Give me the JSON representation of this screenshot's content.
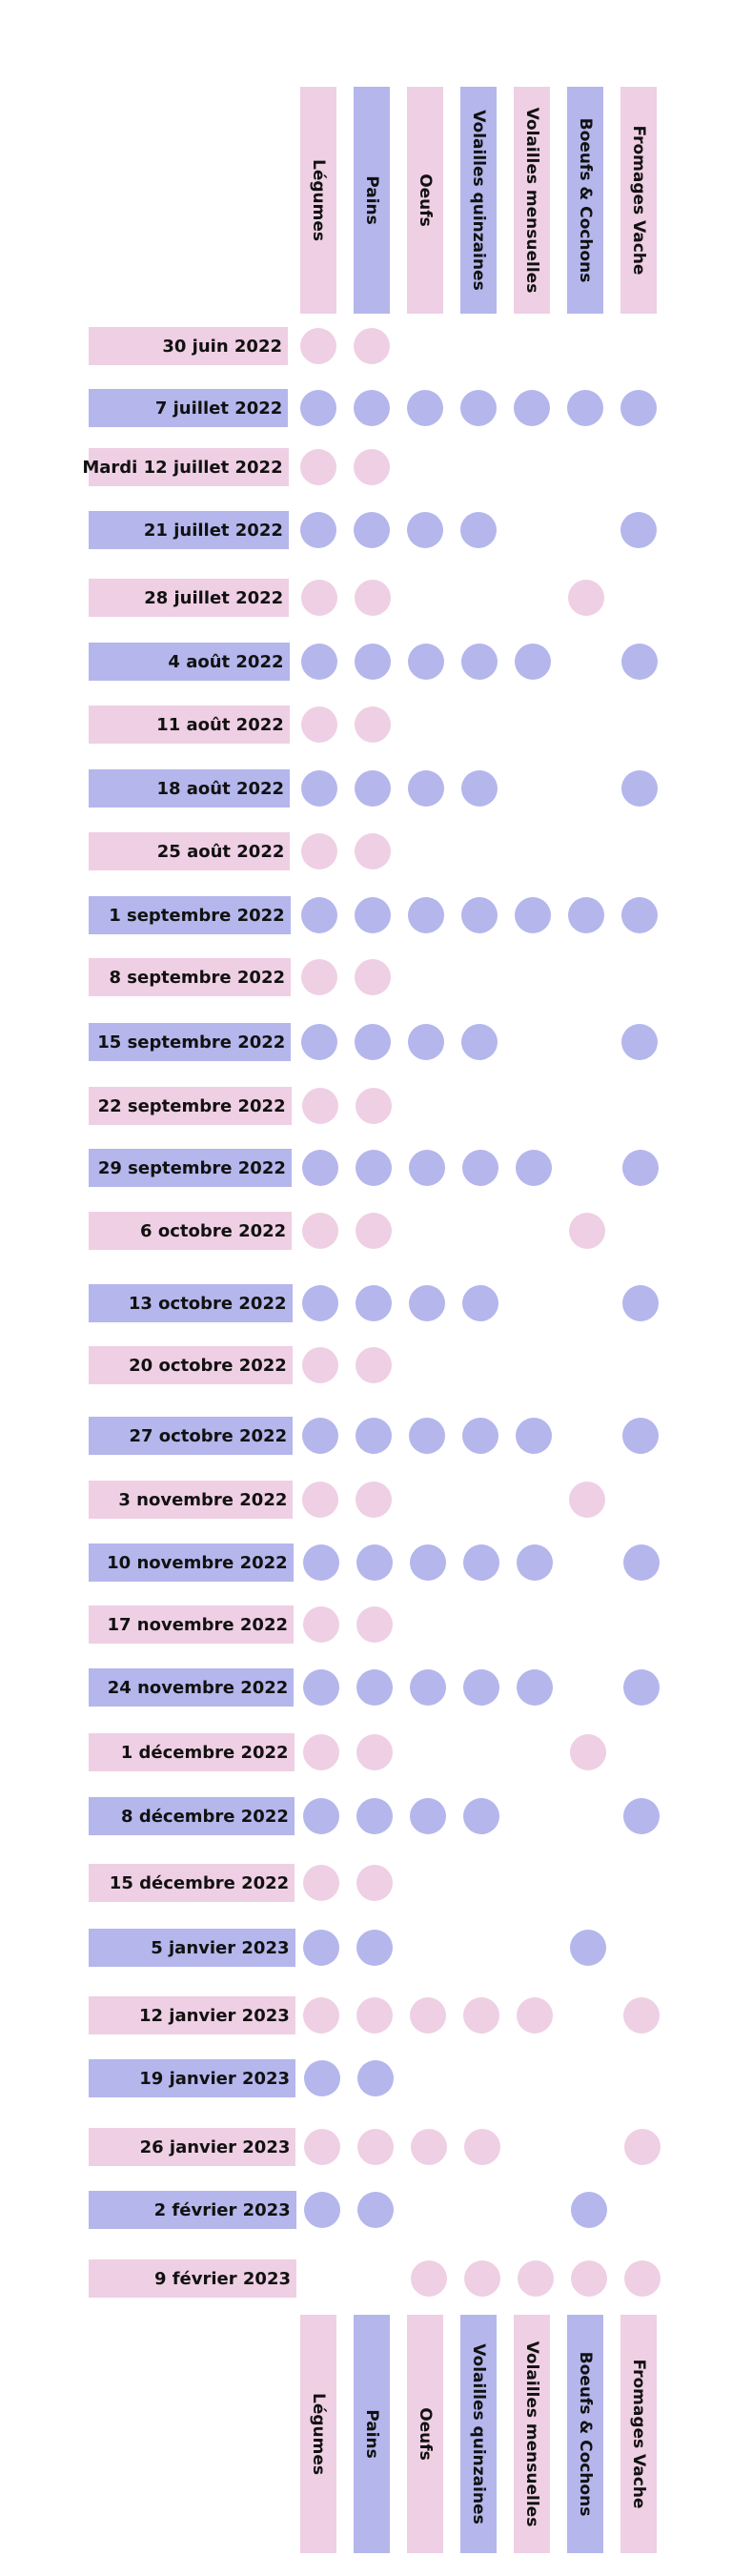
{
  "colors": {
    "pink": "#efcfe4",
    "blue": "#b4b6ec"
  },
  "columns": [
    {
      "key": "legumes",
      "label": "Légumes",
      "color": "pink"
    },
    {
      "key": "pains",
      "label": "Pains",
      "color": "blue"
    },
    {
      "key": "oeufs",
      "label": "Oeufs",
      "color": "pink"
    },
    {
      "key": "volailles_q",
      "label": "Volailles quinzaines",
      "color": "blue"
    },
    {
      "key": "volailles_m",
      "label": "Volailles mensuelles",
      "color": "pink"
    },
    {
      "key": "boeufs",
      "label": "Boeufs & Cochons",
      "color": "blue"
    },
    {
      "key": "fromages",
      "label": "Fromages Vache",
      "color": "pink"
    }
  ],
  "rows": [
    {
      "date": "30 juin 2022",
      "color": "pink",
      "deliveries": [
        1,
        1,
        0,
        0,
        0,
        0,
        0
      ]
    },
    {
      "date": "7 juillet 2022",
      "color": "blue",
      "deliveries": [
        1,
        1,
        1,
        1,
        1,
        1,
        1
      ]
    },
    {
      "date": "Mardi 12 juillet 2022",
      "color": "pink",
      "deliveries": [
        1,
        1,
        0,
        0,
        0,
        0,
        0
      ]
    },
    {
      "date": "21 juillet 2022",
      "color": "blue",
      "deliveries": [
        1,
        1,
        1,
        1,
        0,
        0,
        1
      ]
    },
    {
      "date": "28 juillet 2022",
      "color": "pink",
      "deliveries": [
        1,
        1,
        0,
        0,
        0,
        1,
        0
      ]
    },
    {
      "date": "4 août 2022",
      "color": "blue",
      "deliveries": [
        1,
        1,
        1,
        1,
        1,
        0,
        1
      ]
    },
    {
      "date": "11 août 2022",
      "color": "pink",
      "deliveries": [
        1,
        1,
        0,
        0,
        0,
        0,
        0
      ]
    },
    {
      "date": "18 août 2022",
      "color": "blue",
      "deliveries": [
        1,
        1,
        1,
        1,
        0,
        0,
        1
      ]
    },
    {
      "date": "25 août 2022",
      "color": "pink",
      "deliveries": [
        1,
        1,
        0,
        0,
        0,
        0,
        0
      ]
    },
    {
      "date": "1 septembre 2022",
      "color": "blue",
      "deliveries": [
        1,
        1,
        1,
        1,
        1,
        1,
        1
      ]
    },
    {
      "date": "8 septembre 2022",
      "color": "pink",
      "deliveries": [
        1,
        1,
        0,
        0,
        0,
        0,
        0
      ]
    },
    {
      "date": "15 septembre 2022",
      "color": "blue",
      "deliveries": [
        1,
        1,
        1,
        1,
        0,
        0,
        1
      ]
    },
    {
      "date": "22 septembre 2022",
      "color": "pink",
      "deliveries": [
        1,
        1,
        0,
        0,
        0,
        0,
        0
      ]
    },
    {
      "date": "29 septembre 2022",
      "color": "blue",
      "deliveries": [
        1,
        1,
        1,
        1,
        1,
        0,
        1
      ]
    },
    {
      "date": "6 octobre 2022",
      "color": "pink",
      "deliveries": [
        1,
        1,
        0,
        0,
        0,
        1,
        0
      ]
    },
    {
      "date": "13 octobre 2022",
      "color": "blue",
      "deliveries": [
        1,
        1,
        1,
        1,
        0,
        0,
        1
      ]
    },
    {
      "date": "20 octobre 2022",
      "color": "pink",
      "deliveries": [
        1,
        1,
        0,
        0,
        0,
        0,
        0
      ]
    },
    {
      "date": "27 octobre 2022",
      "color": "blue",
      "deliveries": [
        1,
        1,
        1,
        1,
        1,
        0,
        1
      ]
    },
    {
      "date": "3 novembre 2022",
      "color": "pink",
      "deliveries": [
        1,
        1,
        0,
        0,
        0,
        1,
        0
      ]
    },
    {
      "date": "10 novembre 2022",
      "color": "blue",
      "deliveries": [
        1,
        1,
        1,
        1,
        1,
        0,
        1
      ]
    },
    {
      "date": "17 novembre 2022",
      "color": "pink",
      "deliveries": [
        1,
        1,
        0,
        0,
        0,
        0,
        0
      ]
    },
    {
      "date": "24 novembre 2022",
      "color": "blue",
      "deliveries": [
        1,
        1,
        1,
        1,
        1,
        0,
        1
      ]
    },
    {
      "date": "1 décembre 2022",
      "color": "pink",
      "deliveries": [
        1,
        1,
        0,
        0,
        0,
        1,
        0
      ]
    },
    {
      "date": "8 décembre 2022",
      "color": "blue",
      "deliveries": [
        1,
        1,
        1,
        1,
        0,
        0,
        1
      ]
    },
    {
      "date": "15 décembre 2022",
      "color": "pink",
      "deliveries": [
        1,
        1,
        0,
        0,
        0,
        0,
        0
      ]
    },
    {
      "date": "5 janvier 2023",
      "color": "blue",
      "deliveries": [
        1,
        1,
        0,
        0,
        0,
        1,
        0
      ]
    },
    {
      "date": "12 janvier 2023",
      "color": "pink",
      "deliveries": [
        1,
        1,
        1,
        1,
        1,
        0,
        1
      ]
    },
    {
      "date": "19 janvier 2023",
      "color": "blue",
      "deliveries": [
        1,
        1,
        0,
        0,
        0,
        0,
        0
      ]
    },
    {
      "date": "26 janvier 2023",
      "color": "pink",
      "deliveries": [
        1,
        1,
        1,
        1,
        0,
        0,
        1
      ]
    },
    {
      "date": "2 février 2023",
      "color": "blue",
      "deliveries": [
        1,
        1,
        0,
        0,
        0,
        1,
        0
      ]
    },
    {
      "date": "9 février 2023",
      "color": "pink",
      "deliveries": [
        0,
        0,
        1,
        1,
        1,
        1,
        1
      ]
    }
  ]
}
